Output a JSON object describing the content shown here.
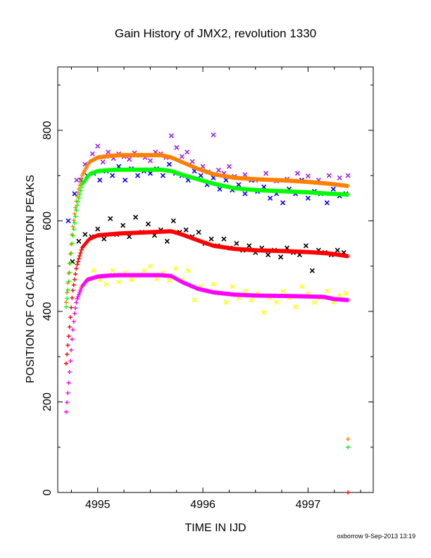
{
  "chart_data": {
    "type": "scatter",
    "title": "Gain History of JMX2, revolution 1330",
    "xlabel": "TIME IN IJD",
    "ylabel": "POSITION OF Cd CALIBRATION PEAKS",
    "xlim": [
      4994.62,
      4997.62
    ],
    "ylim": [
      0,
      940
    ],
    "xticks": [
      4995,
      4996,
      4997
    ],
    "yticks": [
      0,
      200,
      400,
      600,
      800
    ],
    "grid": false,
    "legend": "none",
    "series": [
      {
        "color": "#ff8000",
        "marker": "plus",
        "style": "dense",
        "x": [
          4994.7,
          4994.73,
          4994.76,
          4994.8,
          4994.85,
          4994.92,
          4995.0,
          4995.1,
          4995.2,
          4995.4,
          4995.6,
          4995.7,
          4995.8,
          4995.95,
          4996.1,
          4996.3,
          4996.5,
          4996.8,
          4997.0,
          4997.2,
          4997.38
        ],
        "y": [
          420,
          500,
          580,
          650,
          700,
          730,
          740,
          743,
          745,
          745,
          745,
          740,
          730,
          715,
          703,
          695,
          692,
          689,
          686,
          682,
          677
        ]
      },
      {
        "color": "#00ff00",
        "marker": "plus",
        "style": "dense",
        "x": [
          4994.7,
          4994.73,
          4994.76,
          4994.8,
          4994.85,
          4994.92,
          4995.0,
          4995.1,
          4995.2,
          4995.4,
          4995.6,
          4995.7,
          4995.8,
          4995.95,
          4996.1,
          4996.3,
          4996.5,
          4996.8,
          4997.0,
          4997.2,
          4997.38
        ],
        "y": [
          410,
          480,
          560,
          630,
          680,
          703,
          710,
          712,
          713,
          713,
          713,
          710,
          702,
          692,
          682,
          672,
          668,
          665,
          663,
          660,
          658
        ]
      },
      {
        "color": "#ff0000",
        "marker": "plus",
        "style": "dense",
        "x": [
          4994.7,
          4994.73,
          4994.76,
          4994.8,
          4994.85,
          4994.92,
          4995.0,
          4995.1,
          4995.2,
          4995.4,
          4995.6,
          4995.7,
          4995.8,
          4995.95,
          4996.1,
          4996.3,
          4996.5,
          4996.8,
          4997.0,
          4997.2,
          4997.38
        ],
        "y": [
          285,
          360,
          440,
          500,
          540,
          560,
          568,
          570,
          572,
          574,
          576,
          577,
          570,
          557,
          545,
          538,
          535,
          533,
          531,
          528,
          522
        ]
      },
      {
        "color": "#ff00ff",
        "marker": "plus",
        "style": "dense",
        "x": [
          4994.7,
          4994.72,
          4994.74,
          4994.76,
          4994.78,
          4994.8,
          4994.85,
          4994.9,
          4995.0,
          4995.1,
          4995.2,
          4995.4,
          4995.6,
          4995.7,
          4995.8,
          4995.95,
          4996.1,
          4996.3,
          4996.5,
          4996.8,
          4997.0,
          4997.15,
          4997.25,
          4997.38
        ],
        "y": [
          178,
          230,
          290,
          350,
          395,
          425,
          455,
          470,
          477,
          479,
          480,
          480,
          480,
          478,
          465,
          450,
          442,
          437,
          435,
          434,
          433,
          432,
          427,
          425
        ]
      },
      {
        "color": "#a020f0",
        "marker": "x",
        "style": "scatter",
        "x": [
          4994.8,
          4994.88,
          4994.95,
          4995.0,
          4995.05,
          4995.1,
          4995.15,
          4995.2,
          4995.25,
          4995.3,
          4995.35,
          4995.4,
          4995.45,
          4995.5,
          4995.55,
          4995.6,
          4995.65,
          4995.7,
          4995.75,
          4995.8,
          4995.85,
          4995.9,
          4996.0,
          4996.05,
          4996.1,
          4996.15,
          4996.2,
          4996.25,
          4996.3,
          4996.4,
          4996.5,
          4996.6,
          4996.7,
          4996.8,
          4996.9,
          4997.0,
          4997.1,
          4997.2,
          4997.3,
          4997.38
        ],
        "y": [
          690,
          725,
          748,
          765,
          730,
          752,
          738,
          748,
          742,
          736,
          750,
          745,
          740,
          733,
          752,
          748,
          740,
          788,
          762,
          742,
          752,
          731,
          720,
          708,
          790,
          712,
          705,
          720,
          698,
          702,
          690,
          705,
          688,
          692,
          705,
          699,
          690,
          700,
          695,
          700
        ]
      },
      {
        "color": "#0000ff",
        "marker": "x",
        "style": "scatter",
        "x": [
          4994.72,
          4994.78,
          4994.84,
          4994.9,
          4994.96,
          4995.02,
          4995.08,
          4995.14,
          4995.2,
          4995.26,
          4995.32,
          4995.38,
          4995.44,
          4995.5,
          4995.56,
          4995.62,
          4995.68,
          4995.74,
          4995.8,
          4995.86,
          4995.92,
          4995.98,
          4996.04,
          4996.1,
          4996.16,
          4996.22,
          4996.28,
          4996.34,
          4996.4,
          4996.46,
          4996.52,
          4996.58,
          4996.64,
          4996.7,
          4996.76,
          4996.82,
          4996.88,
          4996.94,
          4997.0,
          4997.06,
          4997.12,
          4997.18,
          4997.24,
          4997.3,
          4997.36
        ],
        "y": [
          600,
          660,
          690,
          700,
          705,
          690,
          710,
          700,
          720,
          690,
          715,
          700,
          710,
          705,
          715,
          700,
          725,
          705,
          700,
          690,
          710,
          700,
          680,
          695,
          670,
          690,
          668,
          680,
          660,
          690,
          665,
          675,
          650,
          660,
          640,
          670,
          660,
          690,
          650,
          665,
          660,
          640,
          670,
          655,
          660
        ]
      },
      {
        "color": "#000000",
        "marker": "x",
        "style": "scatter",
        "x": [
          4994.76,
          4994.82,
          4994.88,
          4994.94,
          4995.0,
          4995.06,
          4995.12,
          4995.18,
          4995.24,
          4995.3,
          4995.36,
          4995.42,
          4995.48,
          4995.54,
          4995.6,
          4995.66,
          4995.72,
          4995.78,
          4995.84,
          4995.9,
          4995.96,
          4996.02,
          4996.08,
          4996.14,
          4996.2,
          4996.26,
          4996.32,
          4996.38,
          4996.44,
          4996.5,
          4996.56,
          4996.62,
          4996.68,
          4996.74,
          4996.8,
          4996.86,
          4996.92,
          4996.98,
          4997.04,
          4997.1,
          4997.16,
          4997.22,
          4997.28,
          4997.34
        ],
        "y": [
          510,
          555,
          570,
          565,
          582,
          560,
          605,
          570,
          590,
          565,
          608,
          575,
          593,
          568,
          580,
          555,
          600,
          575,
          580,
          565,
          575,
          550,
          560,
          545,
          560,
          540,
          550,
          535,
          545,
          530,
          540,
          525,
          535,
          520,
          540,
          530,
          525,
          545,
          490,
          535,
          530,
          525,
          535,
          530
        ]
      },
      {
        "color": "#ffff00",
        "marker": "x",
        "style": "scatter",
        "x": [
          4994.84,
          4994.9,
          4994.96,
          4995.02,
          4995.08,
          4995.14,
          4995.2,
          4995.26,
          4995.32,
          4995.38,
          4995.44,
          4995.5,
          4995.56,
          4995.62,
          4995.68,
          4995.74,
          4995.8,
          4995.86,
          4995.92,
          4995.98,
          4996.04,
          4996.1,
          4996.16,
          4996.22,
          4996.28,
          4996.34,
          4996.4,
          4996.46,
          4996.52,
          4996.58,
          4996.64,
          4996.7,
          4996.76,
          4996.82,
          4996.88,
          4996.94,
          4997.0,
          4997.06,
          4997.12,
          4997.18,
          4997.24,
          4997.3,
          4997.36
        ],
        "y": [
          455,
          470,
          490,
          470,
          460,
          490,
          465,
          485,
          470,
          478,
          490,
          500,
          472,
          485,
          468,
          495,
          470,
          490,
          425,
          455,
          445,
          460,
          440,
          420,
          455,
          430,
          445,
          425,
          440,
          398,
          430,
          420,
          445,
          430,
          410,
          455,
          440,
          420,
          430,
          445,
          420,
          435,
          440
        ]
      },
      {
        "color": "#ff8000",
        "marker": "plus",
        "style": "point",
        "x": [
          4997.38
        ],
        "y": [
          118
        ]
      },
      {
        "color": "#00ff00",
        "marker": "plus",
        "style": "point",
        "x": [
          4997.38
        ],
        "y": [
          100
        ]
      },
      {
        "color": "#ff0000",
        "marker": "plus",
        "style": "point",
        "x": [
          4997.38
        ],
        "y": [
          0
        ]
      }
    ]
  },
  "footer": "oxborrow  9-Sep-2013 13:19"
}
